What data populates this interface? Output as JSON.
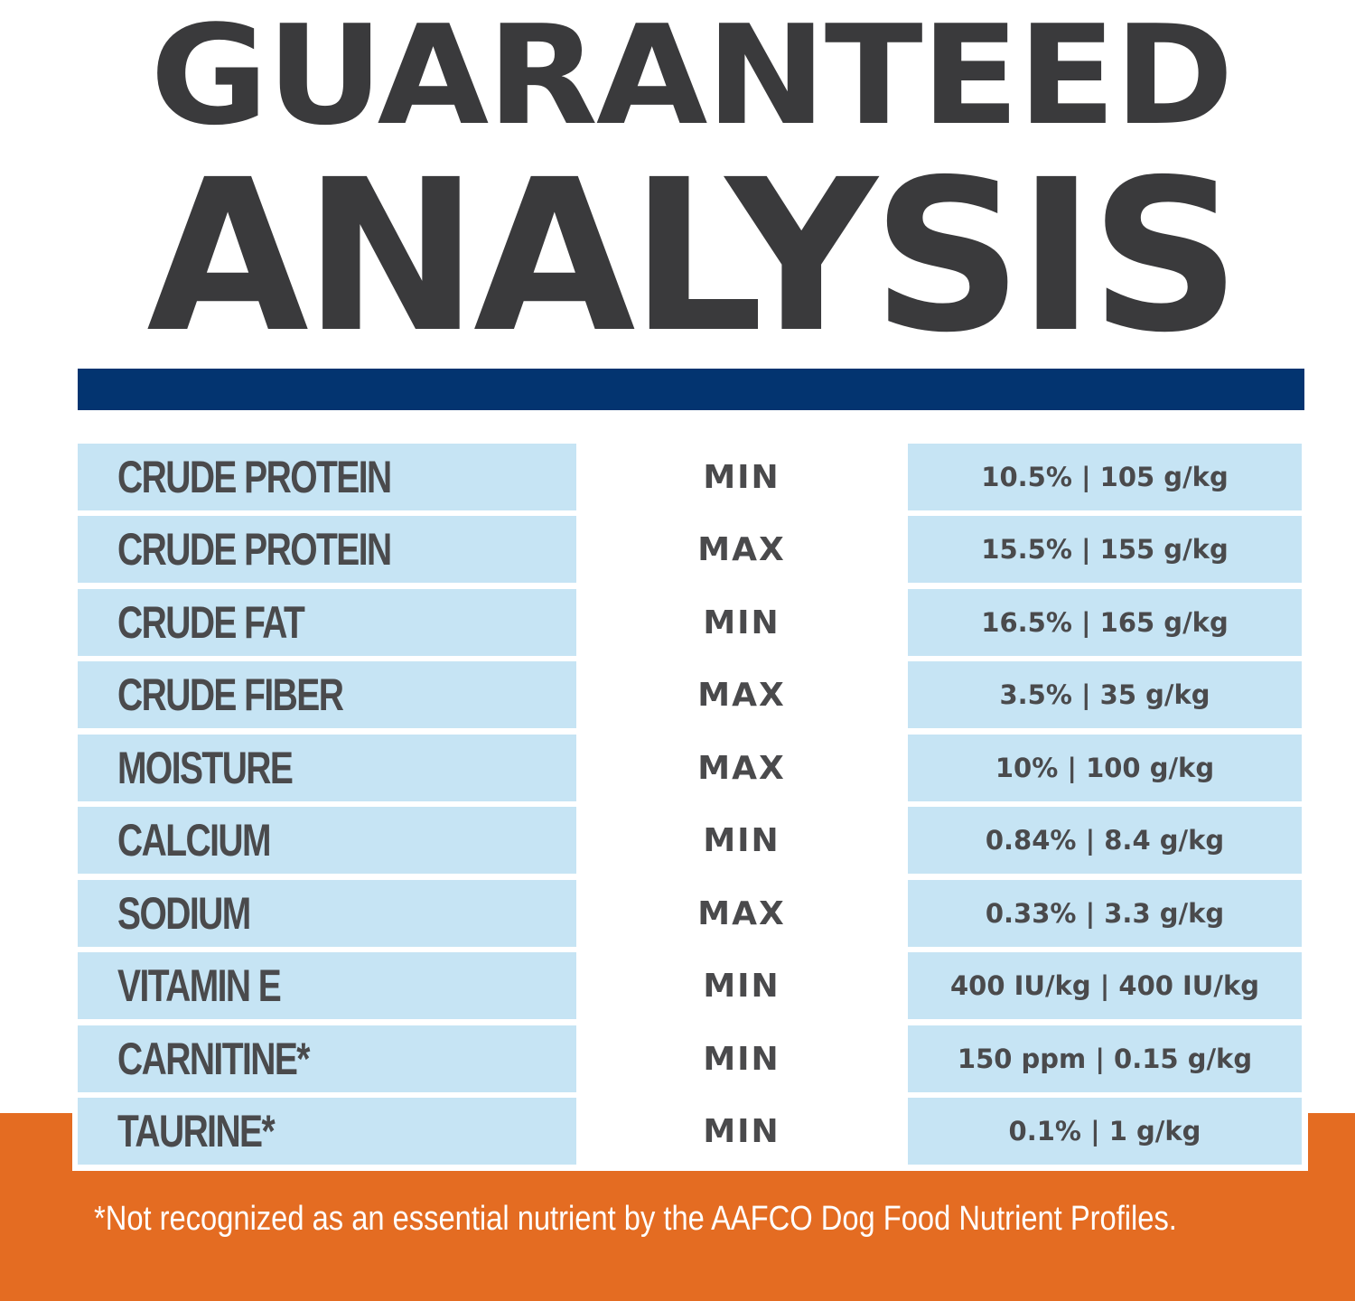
{
  "title": {
    "line1": "GUARANTEED",
    "line2": "ANALYSIS"
  },
  "rows": [
    {
      "nutrient": "CRUDE PROTEIN",
      "type": "MIN",
      "value": "10.5% | 105 g/kg"
    },
    {
      "nutrient": "CRUDE PROTEIN",
      "type": "MAX",
      "value": "15.5% | 155 g/kg"
    },
    {
      "nutrient": "CRUDE FAT",
      "type": "MIN",
      "value": "16.5% | 165 g/kg"
    },
    {
      "nutrient": "CRUDE FIBER",
      "type": "MAX",
      "value": "3.5% | 35 g/kg"
    },
    {
      "nutrient": "MOISTURE",
      "type": "MAX",
      "value": "10% | 100 g/kg"
    },
    {
      "nutrient": "CALCIUM",
      "type": "MIN",
      "value": "0.84% | 8.4 g/kg"
    },
    {
      "nutrient": "SODIUM",
      "type": "MAX",
      "value": "0.33% | 3.3 g/kg"
    },
    {
      "nutrient": "VITAMIN E",
      "type": "MIN",
      "value": "400 IU/kg | 400 IU/kg"
    },
    {
      "nutrient": "CARNITINE*",
      "type": "MIN",
      "value": "150 ppm | 0.15 g/kg"
    },
    {
      "nutrient": "TAURINE*",
      "type": "MIN",
      "value": "0.1% | 1 g/kg"
    }
  ],
  "footnote": "*Not recognized as an essential nutrient by the AAFCO Dog Food Nutrient Profiles.",
  "colors": {
    "title": "#3a3a3c",
    "rule": "#033470",
    "cell": "#c6e4f4",
    "footer": "#e46c22"
  }
}
